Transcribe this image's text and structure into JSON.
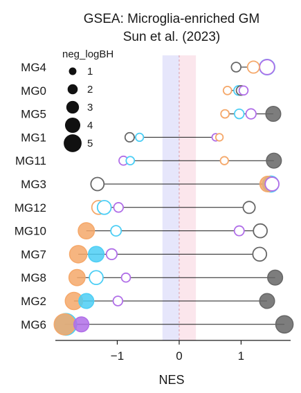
{
  "chart_data": {
    "type": "scatter",
    "title": "GSEA: Microglia-enriched GM",
    "subtitle": "Sun et al. (2023)",
    "xlabel": "NES",
    "ylabel": "",
    "xlim": [
      -2.0,
      1.8
    ],
    "xticks": [
      -1,
      0,
      1
    ],
    "xtick_labels": [
      "−1",
      "0",
      "1"
    ],
    "zero_line": true,
    "bands": [
      {
        "from": -0.27,
        "to": 0,
        "color": "#e6e6fb"
      },
      {
        "from": 0,
        "to": 0.27,
        "color": "#fbe6ec"
      }
    ],
    "categories": [
      "MG4",
      "MG0",
      "MG5",
      "MG1",
      "MG11",
      "MG3",
      "MG12",
      "MG10",
      "MG7",
      "MG8",
      "MG2",
      "MG6"
    ],
    "legend": {
      "title": "neg_logBH",
      "placement": "top-left",
      "sizes": [
        1,
        2,
        3,
        4,
        5
      ],
      "labels": [
        "1",
        "2",
        "3",
        "4",
        "5"
      ]
    },
    "series_colors": {
      "grey": "#666666",
      "orange": "#f5a86a",
      "cyan": "#4ccef5",
      "purple": "#b06ee8"
    },
    "points": [
      {
        "category": "MG4",
        "series": "grey",
        "x": 0.92,
        "size": 1.2,
        "filled": false
      },
      {
        "category": "MG4",
        "series": "orange",
        "x": 1.2,
        "size": 2.0,
        "filled": false
      },
      {
        "category": "MG4",
        "series": "cyan",
        "x": 1.42,
        "size": 3.2,
        "filled": true
      },
      {
        "category": "MG4",
        "series": "purple",
        "x": 1.42,
        "size": 3.0,
        "filled": false
      },
      {
        "category": "MG0",
        "series": "orange",
        "x": 0.78,
        "size": 0.8,
        "filled": false
      },
      {
        "category": "MG0",
        "series": "cyan",
        "x": 0.96,
        "size": 1.2,
        "filled": false
      },
      {
        "category": "MG0",
        "series": "grey",
        "x": 1.0,
        "size": 1.2,
        "filled": false
      },
      {
        "category": "MG0",
        "series": "purple",
        "x": 1.04,
        "size": 1.0,
        "filled": false
      },
      {
        "category": "MG5",
        "series": "orange",
        "x": 0.74,
        "size": 0.8,
        "filled": false
      },
      {
        "category": "MG5",
        "series": "cyan",
        "x": 0.97,
        "size": 1.2,
        "filled": false
      },
      {
        "category": "MG5",
        "series": "purple",
        "x": 1.16,
        "size": 1.4,
        "filled": false
      },
      {
        "category": "MG5",
        "series": "grey",
        "x": 1.52,
        "size": 3.0,
        "filled": true
      },
      {
        "category": "MG1",
        "series": "grey",
        "x": -0.8,
        "size": 1.1,
        "filled": false
      },
      {
        "category": "MG1",
        "series": "cyan",
        "x": -0.64,
        "size": 0.7,
        "filled": false
      },
      {
        "category": "MG1",
        "series": "purple",
        "x": 0.59,
        "size": 0.5,
        "filled": false
      },
      {
        "category": "MG1",
        "series": "orange",
        "x": 0.65,
        "size": 0.5,
        "filled": false
      },
      {
        "category": "MG11",
        "series": "purple",
        "x": -0.9,
        "size": 1.0,
        "filled": false
      },
      {
        "category": "MG11",
        "series": "cyan",
        "x": -0.79,
        "size": 0.8,
        "filled": false
      },
      {
        "category": "MG11",
        "series": "orange",
        "x": 0.73,
        "size": 0.7,
        "filled": false
      },
      {
        "category": "MG11",
        "series": "grey",
        "x": 1.53,
        "size": 3.0,
        "filled": true
      },
      {
        "category": "MG3",
        "series": "grey",
        "x": -1.32,
        "size": 2.4,
        "filled": false
      },
      {
        "category": "MG3",
        "series": "cyan",
        "x": 1.48,
        "size": 3.4,
        "filled": true
      },
      {
        "category": "MG3",
        "series": "orange",
        "x": 1.43,
        "size": 3.2,
        "filled": true
      },
      {
        "category": "MG3",
        "series": "purple",
        "x": 1.5,
        "size": 2.6,
        "filled": false
      },
      {
        "category": "MG12",
        "series": "orange",
        "x": -1.3,
        "size": 2.6,
        "filled": false
      },
      {
        "category": "MG12",
        "series": "cyan",
        "x": -1.21,
        "size": 2.6,
        "filled": false
      },
      {
        "category": "MG12",
        "series": "purple",
        "x": -0.98,
        "size": 1.2,
        "filled": false
      },
      {
        "category": "MG12",
        "series": "grey",
        "x": 1.13,
        "size": 2.0,
        "filled": false
      },
      {
        "category": "MG10",
        "series": "orange",
        "x": -1.5,
        "size": 3.4,
        "filled": true
      },
      {
        "category": "MG10",
        "series": "cyan",
        "x": -1.02,
        "size": 1.5,
        "filled": false
      },
      {
        "category": "MG10",
        "series": "purple",
        "x": 0.97,
        "size": 1.3,
        "filled": false
      },
      {
        "category": "MG10",
        "series": "grey",
        "x": 1.31,
        "size": 2.6,
        "filled": false
      },
      {
        "category": "MG7",
        "series": "orange",
        "x": -1.63,
        "size": 3.8,
        "filled": true
      },
      {
        "category": "MG7",
        "series": "cyan",
        "x": -1.34,
        "size": 3.2,
        "filled": true
      },
      {
        "category": "MG7",
        "series": "purple",
        "x": -1.09,
        "size": 1.6,
        "filled": false
      },
      {
        "category": "MG7",
        "series": "grey",
        "x": 1.3,
        "size": 2.6,
        "filled": false
      },
      {
        "category": "MG8",
        "series": "orange",
        "x": -1.65,
        "size": 3.4,
        "filled": true
      },
      {
        "category": "MG8",
        "series": "cyan",
        "x": -1.34,
        "size": 2.6,
        "filled": false
      },
      {
        "category": "MG8",
        "series": "purple",
        "x": -0.86,
        "size": 1.0,
        "filled": false
      },
      {
        "category": "MG8",
        "series": "grey",
        "x": 1.55,
        "size": 3.0,
        "filled": true
      },
      {
        "category": "MG2",
        "series": "orange",
        "x": -1.7,
        "size": 3.8,
        "filled": true
      },
      {
        "category": "MG2",
        "series": "cyan",
        "x": -1.5,
        "size": 3.0,
        "filled": true
      },
      {
        "category": "MG2",
        "series": "purple",
        "x": -0.99,
        "size": 1.2,
        "filled": false
      },
      {
        "category": "MG2",
        "series": "grey",
        "x": 1.42,
        "size": 3.0,
        "filled": true
      },
      {
        "category": "MG6",
        "series": "cyan",
        "x": -1.83,
        "size": 5.2,
        "filled": true
      },
      {
        "category": "MG6",
        "series": "orange",
        "x": -1.85,
        "size": 5.0,
        "filled": true
      },
      {
        "category": "MG6",
        "series": "purple",
        "x": -1.58,
        "size": 3.0,
        "filled": true
      },
      {
        "category": "MG6",
        "series": "grey",
        "x": 1.7,
        "size": 3.8,
        "filled": true
      }
    ]
  }
}
